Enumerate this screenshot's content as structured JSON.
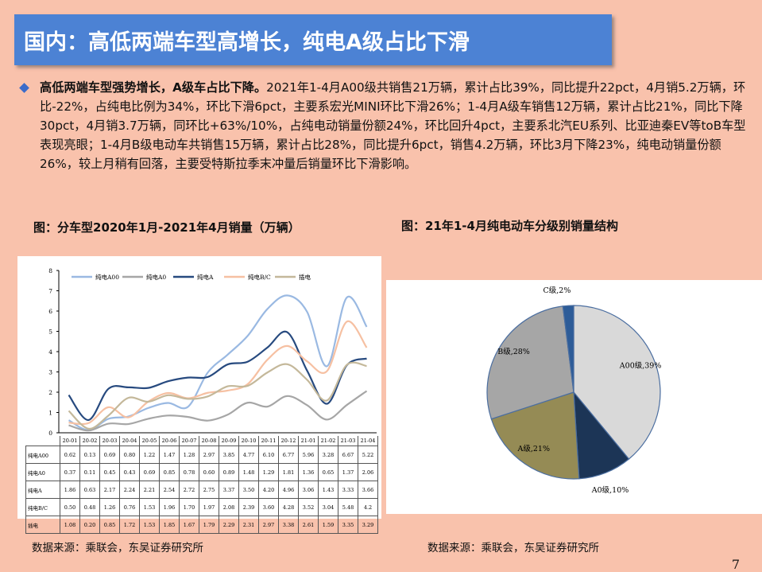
{
  "header": {
    "title": "国内：高低两端车型高增长，纯电A级占比下滑"
  },
  "intro": {
    "lead": "高低两端车型强势增长，A级车占比下降。",
    "body": "2021年1-4月A00级共销售21万辆，累计占比39%，同比提升22pct，4月销5.2万辆，环比-22%，占纯电比例为34%，环比下滑6pct，主要系宏光MINI环比下滑26%；1-4月A级车销售12万辆，累计占比21%，同比下降30pct，4月销3.7万辆，同环比+63%/10%，占纯电动销量份额24%，环比回升4pct，主要系北汽EU系列、比亚迪秦EV等toB车型表现亮眼；1-4月B级电动车共销售15万辆，累计占比28%，同比提升6pct，销售4.2万辆，环比3月下降23%，纯电动销量份额26%，较上月稍有回落，主要受特斯拉季末冲量后销量环比下滑影响。"
  },
  "figure_left": {
    "title": "图：分车型2020年1月-2021年4月销量（万辆）",
    "source": "数据来源：乘联会，东吴证券研究所"
  },
  "figure_right": {
    "title": "图：21年1-4月纯电动车分级别销量结构",
    "source": "数据来源：乘联会，东吴证券研究所"
  },
  "page_number": "7",
  "chart_data": [
    {
      "type": "line",
      "title": "",
      "xlabel": "",
      "ylabel": "",
      "ylim": [
        0,
        8
      ],
      "yticks": [
        "0",
        "1",
        "2",
        "3",
        "4",
        "5",
        "6",
        "7",
        "8"
      ],
      "grid": false,
      "legend_position": "top",
      "categories": [
        "20-01",
        "20-02",
        "20-03",
        "20-04",
        "20-05",
        "20-06",
        "20-07",
        "20-08",
        "20-09",
        "20-10",
        "20-11",
        "20-12",
        "21-01",
        "21-02",
        "21-03",
        "21-04"
      ],
      "series": [
        {
          "name": "纯电A00",
          "color": "#9ab9e2",
          "values": [
            0.62,
            0.13,
            0.69,
            0.8,
            1.22,
            1.47,
            1.28,
            2.97,
            3.85,
            4.77,
            6.1,
            6.77,
            5.96,
            3.28,
            6.67,
            5.22
          ],
          "labels": [
            "0.62",
            "0.13",
            "0.69",
            "0.80",
            "1.22",
            "1.47",
            "1.28",
            "2.97",
            "3.85",
            "4.77",
            "6.10",
            "6.77",
            "5.96",
            "3.28",
            "6.67",
            "5.22"
          ]
        },
        {
          "name": "纯电A0",
          "color": "#a6a6a6",
          "values": [
            0.37,
            0.11,
            0.45,
            0.43,
            0.69,
            0.85,
            0.78,
            0.6,
            0.89,
            1.48,
            1.29,
            1.81,
            1.36,
            0.65,
            1.37,
            2.06
          ],
          "labels": [
            "0.37",
            "0.11",
            "0.45",
            "0.43",
            "0.69",
            "0.85",
            "0.78",
            "0.60",
            "0.89",
            "1.48",
            "1.29",
            "1.81",
            "1.36",
            "0.65",
            "1.37",
            "2.06"
          ]
        },
        {
          "name": "纯电A",
          "color": "#274a7f",
          "values": [
            1.86,
            0.63,
            2.17,
            2.24,
            2.21,
            2.54,
            2.72,
            2.75,
            3.37,
            3.5,
            4.2,
            4.96,
            3.06,
            1.43,
            3.33,
            3.66
          ],
          "labels": [
            "1.86",
            "0.63",
            "2.17",
            "2.24",
            "2.21",
            "2.54",
            "2.72",
            "2.75",
            "3.37",
            "3.50",
            "4.20",
            "4.96",
            "3.06",
            "1.43",
            "3.33",
            "3.66"
          ]
        },
        {
          "name": "纯电B/C",
          "color": "#f6c0a2",
          "values": [
            0.5,
            0.48,
            1.26,
            0.76,
            1.53,
            1.96,
            1.7,
            1.97,
            2.08,
            2.39,
            3.6,
            4.28,
            3.52,
            3.04,
            5.48,
            4.2
          ],
          "labels": [
            "0.50",
            "0.48",
            "1.26",
            "0.76",
            "1.53",
            "1.96",
            "1.70",
            "1.97",
            "2.08",
            "2.39",
            "3.60",
            "4.28",
            "3.52",
            "3.04",
            "5.48",
            "4.2"
          ]
        },
        {
          "name": "插电",
          "color": "#c4b89a",
          "values": [
            1.08,
            0.2,
            0.85,
            1.72,
            1.53,
            1.85,
            1.67,
            1.79,
            2.29,
            2.31,
            2.97,
            3.38,
            2.61,
            1.59,
            3.35,
            3.29
          ],
          "labels": [
            "1.08",
            "0.20",
            "0.85",
            "1.72",
            "1.53",
            "1.85",
            "1.67",
            "1.79",
            "2.29",
            "2.31",
            "2.97",
            "3.38",
            "2.61",
            "1.59",
            "3.35",
            "3.29"
          ]
        }
      ]
    },
    {
      "type": "pie",
      "title": "",
      "slices": [
        {
          "label": "A00级,39%",
          "value": 39,
          "color": "#d9d9d9"
        },
        {
          "label": "A0级,10%",
          "value": 10,
          "color": "#1c3556"
        },
        {
          "label": "A级,21%",
          "value": 21,
          "color": "#958b55"
        },
        {
          "label": "B级,28%",
          "value": 28,
          "color": "#a6a6a6"
        },
        {
          "label": "C级,2%",
          "value": 2,
          "color": "#2d5c98"
        }
      ]
    }
  ]
}
